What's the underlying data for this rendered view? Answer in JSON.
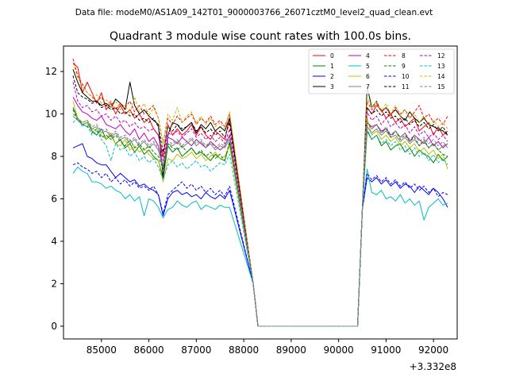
{
  "figure": {
    "suptitle": "Data file: modeM0/AS1A09_142T01_9000003766_26071cztM0_level2_quad_clean.evt"
  },
  "chart_data": {
    "type": "line",
    "title": "Quadrant 3 module wise count rates with 100.0s bins.",
    "xlabel": "",
    "ylabel": "",
    "x_offset_label": "+3.332e8",
    "xlim": [
      84200,
      92500
    ],
    "ylim": [
      -0.6,
      13.2
    ],
    "x_ticks": [
      85000,
      86000,
      87000,
      88000,
      89000,
      90000,
      91000,
      92000
    ],
    "x_tick_labels": [
      "85000",
      "86000",
      "87000",
      "88000",
      "89000",
      "90000",
      "91000",
      "92000"
    ],
    "y_ticks": [
      0,
      2,
      4,
      6,
      8,
      10,
      12
    ],
    "y_tick_labels": [
      "0",
      "2",
      "4",
      "6",
      "8",
      "10",
      "12"
    ],
    "legend_position": "top-right",
    "legend_columns": 4,
    "gap": {
      "x_drop_start": 88100,
      "x_zero_start": 88300,
      "x_zero_end": 90400,
      "x_rise_end": 90600,
      "value": 0
    },
    "series": [
      {
        "name": "0",
        "color": "#ff0000",
        "dash": "solid",
        "segment1": [
          12.4,
          12.2,
          11.0,
          11.5,
          11.0,
          10.5,
          11.0,
          10.2,
          10.5,
          10.0,
          10.4,
          10.0,
          10.2,
          9.8,
          10.0,
          9.6,
          9.8,
          9.3,
          9.0,
          8.0,
          9.5,
          9.0,
          9.3,
          9.0,
          9.2,
          9.5,
          9.0,
          9.4,
          9.0,
          8.8,
          9.2,
          9.0,
          8.8,
          9.8
        ],
        "segment2": [
          10.3,
          10.0,
          10.4,
          10.2,
          9.8,
          10.0,
          9.6,
          9.8,
          9.4,
          9.6,
          9.8,
          9.2,
          9.4,
          9.6,
          9.0,
          9.4,
          9.0,
          9.2
        ]
      },
      {
        "name": "1",
        "color": "#008000",
        "dash": "solid",
        "segment1": [
          10.3,
          9.8,
          9.5,
          9.6,
          9.2,
          9.0,
          9.3,
          8.8,
          9.0,
          8.6,
          8.8,
          8.4,
          8.6,
          8.2,
          8.5,
          8.1,
          8.3,
          8.0,
          7.8,
          7.0,
          8.5,
          8.2,
          8.4,
          8.0,
          8.2,
          8.4,
          8.1,
          8.2,
          8.0,
          7.8,
          8.1,
          7.9,
          7.8,
          8.6
        ],
        "segment2": [
          9.2,
          8.8,
          9.0,
          8.5,
          8.7,
          8.3,
          8.5,
          8.6,
          8.2,
          8.4,
          8.0,
          8.3,
          8.1,
          8.0,
          7.7,
          8.1,
          7.8,
          8.0
        ]
      },
      {
        "name": "2",
        "color": "#0000ff",
        "dash": "solid",
        "segment1": [
          8.4,
          8.5,
          8.6,
          8.0,
          7.9,
          7.7,
          7.6,
          7.6,
          7.3,
          7.0,
          7.2,
          7.0,
          6.8,
          6.9,
          6.6,
          6.7,
          6.5,
          6.4,
          6.2,
          5.2,
          6.0,
          6.3,
          6.4,
          6.2,
          6.3,
          6.1,
          6.2,
          6.0,
          6.3,
          6.1,
          6.0,
          6.2,
          6.0,
          6.4
        ],
        "segment2": [
          7.0,
          6.8,
          7.0,
          6.7,
          6.9,
          6.6,
          6.8,
          6.5,
          6.7,
          6.6,
          6.3,
          6.6,
          6.4,
          6.2,
          6.5,
          6.3,
          6.0,
          5.6
        ]
      },
      {
        "name": "3",
        "color": "#000000",
        "dash": "solid",
        "segment1": [
          12.1,
          11.5,
          11.0,
          10.8,
          10.6,
          10.6,
          10.4,
          10.5,
          10.3,
          10.7,
          10.5,
          10.2,
          11.5,
          10.4,
          10.0,
          10.2,
          9.9,
          9.7,
          9.5,
          7.0,
          9.0,
          9.6,
          9.5,
          9.2,
          9.4,
          9.6,
          9.1,
          9.5,
          9.3,
          9.6,
          9.2,
          9.4,
          9.2,
          9.8
        ],
        "segment2": [
          11.3,
          10.3,
          10.6,
          10.1,
          10.3,
          10.0,
          10.2,
          9.9,
          9.7,
          10.1,
          9.8,
          9.6,
          9.8,
          9.5,
          9.4,
          9.3,
          9.2,
          9.0
        ]
      },
      {
        "name": "4",
        "color": "#bf00bf",
        "dash": "solid",
        "segment1": [
          10.8,
          10.4,
          10.1,
          10.0,
          9.8,
          9.7,
          9.9,
          9.5,
          9.4,
          9.3,
          9.5,
          9.2,
          9.0,
          9.3,
          8.8,
          9.1,
          8.7,
          8.9,
          8.5,
          7.5,
          8.9,
          8.8,
          8.6,
          8.9,
          8.7,
          8.5,
          8.8,
          8.6,
          8.4,
          8.7,
          8.5,
          8.3,
          8.5,
          9.0
        ],
        "segment2": [
          9.6,
          9.4,
          9.5,
          9.2,
          9.3,
          9.0,
          9.2,
          8.9,
          9.1,
          8.7,
          9.0,
          8.8,
          8.6,
          8.9,
          8.5,
          8.7,
          8.4,
          8.6
        ]
      },
      {
        "name": "5",
        "color": "#00bfbf",
        "dash": "solid",
        "segment1": [
          7.2,
          7.5,
          7.3,
          7.2,
          6.8,
          6.8,
          6.7,
          6.5,
          6.6,
          6.4,
          6.3,
          6.0,
          6.2,
          5.9,
          6.1,
          5.2,
          6.0,
          5.9,
          5.6,
          5.1,
          5.5,
          5.6,
          5.9,
          5.7,
          5.6,
          5.8,
          5.9,
          5.5,
          5.7,
          5.6,
          5.5,
          5.7,
          5.6,
          5.6
        ],
        "segment2": [
          7.4,
          6.3,
          6.2,
          6.4,
          6.0,
          6.1,
          5.9,
          6.2,
          5.8,
          6.0,
          5.7,
          5.9,
          5.0,
          5.6,
          5.8,
          6.0,
          5.7,
          5.8
        ]
      },
      {
        "name": "6",
        "color": "#bfbf00",
        "dash": "solid",
        "segment1": [
          10.6,
          9.8,
          9.6,
          9.7,
          9.3,
          9.2,
          9.0,
          8.8,
          9.1,
          8.6,
          8.5,
          8.8,
          8.3,
          8.5,
          8.2,
          8.4,
          8.1,
          7.9,
          7.8,
          6.8,
          7.9,
          7.8,
          8.1,
          7.9,
          8.0,
          8.2,
          7.9,
          8.1,
          7.8,
          8.0,
          8.2,
          7.9,
          8.0,
          8.5
        ],
        "segment2": [
          9.8,
          9.0,
          9.2,
          8.8,
          9.0,
          8.7,
          8.9,
          8.5,
          8.7,
          8.4,
          8.6,
          8.2,
          8.4,
          8.1,
          8.3,
          7.9,
          8.1,
          7.4
        ]
      },
      {
        "name": "7",
        "color": "#808080",
        "dash": "solid",
        "segment1": [
          9.9,
          9.7,
          9.5,
          9.6,
          9.3,
          9.4,
          9.1,
          9.2,
          8.9,
          9.1,
          8.8,
          8.9,
          8.6,
          8.8,
          8.5,
          8.7,
          8.4,
          8.6,
          8.3,
          7.4,
          8.6,
          8.5,
          8.7,
          8.4,
          8.6,
          8.8,
          8.5,
          8.7,
          8.4,
          8.6,
          8.3,
          8.5,
          8.4,
          8.8
        ],
        "segment2": [
          9.4,
          9.1,
          9.3,
          9.0,
          9.2,
          8.9,
          9.0,
          8.7,
          8.9,
          8.6,
          8.8,
          8.5,
          8.7,
          8.4,
          8.6,
          8.3,
          8.5,
          8.6
        ]
      },
      {
        "name": "8",
        "color": "#ff0000",
        "dash": "dashed",
        "segment1": [
          12.6,
          11.8,
          11.4,
          11.0,
          10.8,
          10.6,
          10.8,
          10.4,
          10.6,
          10.2,
          10.5,
          10.3,
          10.6,
          10.1,
          10.4,
          10.0,
          10.2,
          10.4,
          9.8,
          8.6,
          9.8,
          9.5,
          9.9,
          9.6,
          9.8,
          10.0,
          9.5,
          9.8,
          9.6,
          9.9,
          9.5,
          9.7,
          9.4,
          10.0
        ],
        "segment2": [
          10.6,
          10.2,
          10.5,
          10.1,
          10.3,
          9.9,
          10.3,
          10.0,
          10.2,
          9.8,
          10.1,
          10.4,
          9.8,
          10.0,
          9.6,
          9.8,
          9.5,
          9.9
        ]
      },
      {
        "name": "9",
        "color": "#008000",
        "dash": "dashed",
        "segment1": [
          10.2,
          9.7,
          9.5,
          9.4,
          9.1,
          9.3,
          8.9,
          9.0,
          8.8,
          9.0,
          8.7,
          8.5,
          8.8,
          8.4,
          8.6,
          8.3,
          8.5,
          8.2,
          8.0,
          7.4,
          8.6,
          8.4,
          8.3,
          8.5,
          8.2,
          8.4,
          8.1,
          8.3,
          8.0,
          8.2,
          7.9,
          8.1,
          7.8,
          8.7
        ],
        "segment2": [
          9.6,
          9.3,
          9.5,
          9.1,
          9.3,
          8.9,
          9.2,
          8.8,
          9.0,
          8.7,
          8.9,
          8.5,
          8.8,
          8.4,
          8.6,
          8.3,
          8.1,
          8.0
        ]
      },
      {
        "name": "10",
        "color": "#0000ff",
        "dash": "dashed",
        "segment1": [
          7.6,
          7.7,
          7.5,
          7.4,
          7.2,
          7.3,
          7.0,
          7.2,
          6.8,
          7.0,
          6.7,
          6.9,
          6.6,
          6.8,
          6.5,
          6.6,
          6.4,
          6.6,
          6.2,
          5.3,
          6.2,
          6.4,
          6.6,
          6.8,
          6.5,
          6.7,
          6.4,
          6.6,
          6.3,
          6.5,
          6.2,
          6.4,
          6.1,
          6.6
        ],
        "segment2": [
          7.2,
          6.9,
          7.1,
          6.8,
          7.0,
          6.7,
          6.9,
          6.6,
          6.8,
          6.5,
          6.7,
          6.4,
          6.6,
          6.3,
          6.5,
          6.1,
          6.3,
          6.2
        ]
      },
      {
        "name": "11",
        "color": "#000000",
        "dash": "dashed",
        "segment1": [
          11.8,
          11.0,
          10.8,
          10.7,
          10.5,
          10.6,
          10.3,
          10.4,
          10.2,
          10.3,
          10.0,
          10.1,
          9.9,
          10.0,
          9.7,
          9.8,
          9.6,
          9.8,
          9.4,
          8.2,
          9.4,
          9.2,
          9.5,
          9.3,
          9.4,
          9.6,
          9.2,
          9.4,
          9.1,
          9.3,
          9.0,
          9.2,
          8.9,
          9.6
        ],
        "segment2": [
          10.3,
          10.0,
          10.2,
          9.9,
          10.1,
          9.8,
          9.9,
          9.6,
          9.8,
          9.5,
          9.7,
          9.4,
          9.6,
          9.3,
          9.5,
          9.2,
          9.4,
          9.0
        ]
      },
      {
        "name": "12",
        "color": "#bf00bf",
        "dash": "dashed",
        "segment1": [
          11.5,
          10.6,
          10.3,
          10.4,
          10.1,
          10.2,
          9.9,
          10.0,
          9.7,
          9.9,
          9.6,
          9.7,
          9.4,
          9.6,
          9.3,
          9.4,
          9.2,
          9.3,
          9.0,
          7.8,
          9.1,
          9.0,
          9.2,
          8.9,
          9.1,
          9.3,
          8.9,
          9.1,
          8.8,
          9.0,
          8.7,
          8.9,
          8.6,
          9.3
        ],
        "segment2": [
          10.1,
          9.7,
          9.9,
          9.5,
          9.8,
          9.4,
          9.6,
          9.3,
          9.5,
          9.1,
          9.4,
          9.0,
          9.2,
          8.9,
          9.1,
          8.8,
          9.0,
          8.7
        ]
      },
      {
        "name": "13",
        "color": "#00bfbf",
        "dash": "dashed",
        "segment1": [
          9.6,
          9.8,
          9.4,
          9.5,
          9.0,
          9.2,
          8.8,
          8.5,
          7.8,
          8.6,
          8.3,
          8.4,
          8.0,
          8.2,
          7.8,
          8.0,
          7.7,
          7.9,
          7.5,
          6.9,
          7.6,
          7.8,
          7.5,
          7.7,
          7.4,
          7.6,
          7.8,
          7.5,
          7.6,
          7.3,
          7.5,
          7.7,
          7.6,
          8.1
        ],
        "segment2": [
          9.3,
          8.8,
          9.0,
          8.6,
          8.8,
          8.5,
          8.7,
          8.3,
          8.5,
          8.1,
          8.4,
          8.0,
          8.2,
          7.8,
          8.1,
          7.7,
          7.9,
          7.6
        ]
      },
      {
        "name": "14",
        "color": "#bfbf00",
        "dash": "dashed",
        "segment1": [
          12.4,
          11.7,
          11.3,
          11.0,
          10.8,
          10.9,
          10.5,
          10.7,
          10.3,
          10.6,
          10.2,
          10.4,
          10.0,
          10.8,
          10.1,
          10.5,
          9.9,
          10.3,
          9.8,
          8.6,
          10.0,
          9.7,
          10.3,
          9.6,
          9.9,
          10.1,
          9.6,
          9.9,
          9.5,
          9.8,
          9.4,
          9.6,
          9.3,
          10.1
        ],
        "segment2": [
          10.8,
          10.3,
          10.6,
          10.1,
          10.5,
          10.0,
          10.4,
          9.9,
          10.2,
          9.8,
          10.0,
          9.6,
          9.9,
          9.5,
          9.7,
          9.4,
          9.6,
          9.3
        ]
      },
      {
        "name": "15",
        "color": "#808080",
        "dash": "dashed",
        "segment1": [
          10.0,
          9.8,
          9.6,
          9.7,
          9.4,
          9.5,
          9.2,
          9.3,
          9.0,
          9.2,
          8.9,
          9.0,
          8.7,
          8.9,
          8.6,
          8.8,
          8.5,
          8.7,
          8.4,
          7.6,
          8.7,
          8.6,
          8.8,
          8.5,
          8.7,
          8.9,
          8.6,
          8.8,
          8.5,
          8.7,
          8.4,
          8.6,
          8.5,
          8.9
        ],
        "segment2": [
          9.6,
          9.3,
          9.5,
          9.1,
          9.4,
          9.0,
          9.2,
          8.9,
          9.1,
          8.8,
          9.0,
          8.7,
          8.9,
          8.6,
          8.8,
          8.5,
          8.7,
          8.4
        ]
      }
    ]
  }
}
